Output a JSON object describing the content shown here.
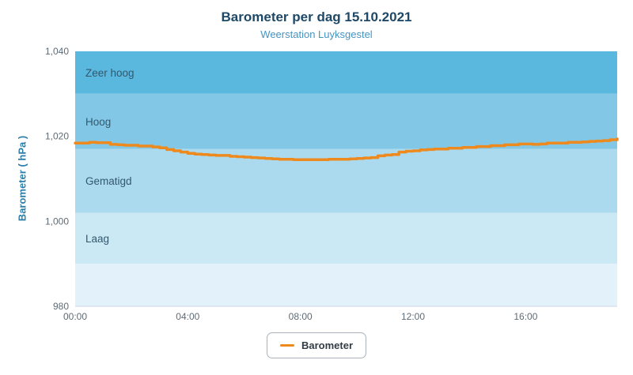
{
  "header": {
    "title": "Barometer per dag 15.10.2021",
    "subtitle": "Weerstation Luyksgestel"
  },
  "legend": {
    "label": "Barometer"
  },
  "chart_data": {
    "type": "line",
    "title": "Barometer per dag 15.10.2021",
    "subtitle": "Weerstation Luyksgestel",
    "xlabel": "",
    "ylabel": "Barometer ( hPa )",
    "ylim": [
      980,
      1040
    ],
    "xlim_hours": [
      0,
      19.25
    ],
    "grid": false,
    "legend_position": "bottom-center",
    "y_ticks": [
      {
        "value": 1040,
        "label": "1,040"
      },
      {
        "value": 1020,
        "label": "1,020"
      },
      {
        "value": 1000,
        "label": "1,000"
      },
      {
        "value": 980,
        "label": "980"
      }
    ],
    "x_ticks": [
      {
        "hour": 0,
        "label": "00:00"
      },
      {
        "hour": 4,
        "label": "04:00"
      },
      {
        "hour": 8,
        "label": "08:00"
      },
      {
        "hour": 12,
        "label": "12:00"
      },
      {
        "hour": 16,
        "label": "16:00"
      }
    ],
    "bands": [
      {
        "from": 1030,
        "to": 1040,
        "label": "Zeer hoog",
        "color": "#5ab7de"
      },
      {
        "from": 1017,
        "to": 1030,
        "label": "Hoog",
        "color": "#82c8e6"
      },
      {
        "from": 1002,
        "to": 1017,
        "label": "Gematigd",
        "color": "#abdaee"
      },
      {
        "from": 990,
        "to": 1002,
        "label": "Laag",
        "color": "#cbe8f5"
      },
      {
        "from": 980,
        "to": 990,
        "label": "",
        "color": "#e3f2fa"
      }
    ],
    "band_label_color": "#33586e",
    "tick_label_color": "#5f6b75",
    "axis_line_color": "#ccd6eb",
    "series": [
      {
        "name": "Barometer",
        "color": "#ee8a1d",
        "step": true,
        "points": [
          [
            0.0,
            1018.4
          ],
          [
            0.25,
            1018.4
          ],
          [
            0.5,
            1018.6
          ],
          [
            0.75,
            1018.5
          ],
          [
            1.0,
            1018.5
          ],
          [
            1.25,
            1018.1
          ],
          [
            1.5,
            1018.0
          ],
          [
            1.75,
            1017.9
          ],
          [
            2.0,
            1017.9
          ],
          [
            2.25,
            1017.7
          ],
          [
            2.5,
            1017.7
          ],
          [
            2.75,
            1017.5
          ],
          [
            3.0,
            1017.3
          ],
          [
            3.25,
            1016.9
          ],
          [
            3.5,
            1016.6
          ],
          [
            3.75,
            1016.3
          ],
          [
            4.0,
            1016.0
          ],
          [
            4.25,
            1015.8
          ],
          [
            4.5,
            1015.7
          ],
          [
            4.75,
            1015.6
          ],
          [
            5.0,
            1015.5
          ],
          [
            5.25,
            1015.5
          ],
          [
            5.5,
            1015.3
          ],
          [
            5.75,
            1015.2
          ],
          [
            6.0,
            1015.1
          ],
          [
            6.25,
            1015.0
          ],
          [
            6.5,
            1014.9
          ],
          [
            6.75,
            1014.8
          ],
          [
            7.0,
            1014.7
          ],
          [
            7.25,
            1014.6
          ],
          [
            7.5,
            1014.6
          ],
          [
            7.75,
            1014.5
          ],
          [
            8.0,
            1014.5
          ],
          [
            8.25,
            1014.5
          ],
          [
            8.5,
            1014.5
          ],
          [
            8.75,
            1014.5
          ],
          [
            9.0,
            1014.6
          ],
          [
            9.25,
            1014.6
          ],
          [
            9.5,
            1014.6
          ],
          [
            9.75,
            1014.7
          ],
          [
            10.0,
            1014.8
          ],
          [
            10.25,
            1014.9
          ],
          [
            10.5,
            1015.0
          ],
          [
            10.75,
            1015.4
          ],
          [
            11.0,
            1015.6
          ],
          [
            11.25,
            1015.7
          ],
          [
            11.5,
            1016.3
          ],
          [
            11.75,
            1016.5
          ],
          [
            12.0,
            1016.6
          ],
          [
            12.25,
            1016.8
          ],
          [
            12.5,
            1016.9
          ],
          [
            12.75,
            1017.0
          ],
          [
            13.0,
            1017.0
          ],
          [
            13.25,
            1017.2
          ],
          [
            13.5,
            1017.2
          ],
          [
            13.75,
            1017.4
          ],
          [
            14.0,
            1017.4
          ],
          [
            14.25,
            1017.6
          ],
          [
            14.5,
            1017.6
          ],
          [
            14.75,
            1017.8
          ],
          [
            15.0,
            1017.8
          ],
          [
            15.25,
            1018.0
          ],
          [
            15.5,
            1018.0
          ],
          [
            15.75,
            1018.2
          ],
          [
            16.0,
            1018.2
          ],
          [
            16.25,
            1018.1
          ],
          [
            16.5,
            1018.2
          ],
          [
            16.75,
            1018.4
          ],
          [
            17.0,
            1018.4
          ],
          [
            17.25,
            1018.4
          ],
          [
            17.5,
            1018.6
          ],
          [
            17.75,
            1018.6
          ],
          [
            18.0,
            1018.7
          ],
          [
            18.25,
            1018.8
          ],
          [
            18.5,
            1018.9
          ],
          [
            18.75,
            1019.0
          ],
          [
            19.0,
            1019.2
          ],
          [
            19.25,
            1019.4
          ]
        ]
      }
    ]
  }
}
